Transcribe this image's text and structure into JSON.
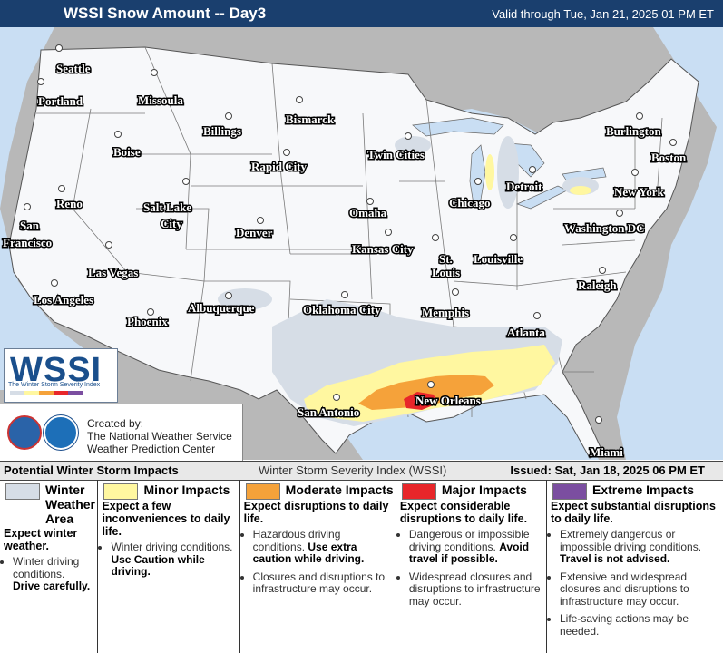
{
  "header": {
    "title": "WSSI Snow Amount -- Day3",
    "valid": "Valid through Tue, Jan 21, 2025 01 PM ET"
  },
  "map": {
    "cities": [
      {
        "name": "Seattle",
        "dot": [
          65,
          53
        ],
        "label": [
          62,
          80
        ]
      },
      {
        "name": "Portland",
        "dot": [
          45,
          90
        ],
        "label": [
          42,
          116
        ]
      },
      {
        "name": "Missoula",
        "dot": [
          170,
          80
        ],
        "label": [
          152,
          115
        ]
      },
      {
        "name": "Billings",
        "dot": [
          252,
          128
        ],
        "label": [
          224,
          149
        ]
      },
      {
        "name": "Bismarck",
        "dot": [
          330,
          110
        ],
        "label": [
          315,
          136
        ]
      },
      {
        "name": "Boise",
        "dot": [
          130,
          148
        ],
        "label": [
          125,
          172
        ]
      },
      {
        "name": "Rapid City",
        "dot": [
          316,
          168
        ],
        "label": [
          277,
          188
        ]
      },
      {
        "name": "Twin Cities",
        "dot": [
          450,
          150
        ],
        "label": [
          405,
          175
        ]
      },
      {
        "name": "Burlington",
        "dot": [
          705,
          128
        ],
        "label": [
          668,
          149
        ]
      },
      {
        "name": "Boston",
        "dot": [
          742,
          157
        ],
        "label": [
          718,
          178
        ]
      },
      {
        "name": "Reno",
        "dot": [
          68,
          208
        ],
        "label": [
          62,
          229
        ]
      },
      {
        "name": "Salt Lake",
        "dot": [
          205,
          200
        ],
        "label": [
          158,
          233
        ]
      },
      {
        "name": "City",
        "dot": null,
        "label": [
          177,
          251
        ]
      },
      {
        "name": "Detroit",
        "dot": [
          587,
          187
        ],
        "label": [
          558,
          210
        ]
      },
      {
        "name": "Chicago",
        "dot": [
          527,
          200
        ],
        "label": [
          495,
          228
        ]
      },
      {
        "name": "Omaha",
        "dot": [
          408,
          222
        ],
        "label": [
          385,
          239
        ]
      },
      {
        "name": "New York",
        "dot": [
          700,
          190
        ],
        "label": [
          677,
          216
        ]
      },
      {
        "name": "San",
        "dot": [
          30,
          228
        ],
        "label": [
          22,
          253
        ]
      },
      {
        "name": "Francisco",
        "dot": null,
        "label": [
          3,
          272
        ]
      },
      {
        "name": "Denver",
        "dot": [
          287,
          243
        ],
        "label": [
          260,
          261
        ]
      },
      {
        "name": "Washington DC",
        "dot": [
          683,
          235
        ],
        "label": [
          622,
          256
        ]
      },
      {
        "name": "Kansas City",
        "dot": [
          428,
          256
        ],
        "label": [
          388,
          279
        ]
      },
      {
        "name": "St.",
        "dot": [
          480,
          262
        ],
        "label": [
          484,
          290
        ]
      },
      {
        "name": "Louisville",
        "dot": [
          566,
          262
        ],
        "label": [
          522,
          290
        ]
      },
      {
        "name": "Louis",
        "dot": null,
        "label": [
          476,
          305
        ]
      },
      {
        "name": "Las Vegas",
        "dot": [
          120,
          270
        ],
        "label": [
          97,
          305
        ]
      },
      {
        "name": "Raleigh",
        "dot": [
          664,
          298
        ],
        "label": [
          637,
          319
        ]
      },
      {
        "name": "Los Angeles",
        "dot": [
          60,
          312
        ],
        "label": [
          37,
          335
        ]
      },
      {
        "name": "Albuquerque",
        "dot": [
          252,
          326
        ],
        "label": [
          207,
          344
        ]
      },
      {
        "name": "Oklahoma City",
        "dot": [
          380,
          325
        ],
        "label": [
          334,
          346
        ]
      },
      {
        "name": "Memphis",
        "dot": [
          502,
          322
        ],
        "label": [
          465,
          349
        ]
      },
      {
        "name": "Phoenix",
        "dot": [
          166,
          344
        ],
        "label": [
          140,
          359
        ]
      },
      {
        "name": "Atlanta",
        "dot": [
          592,
          348
        ],
        "label": [
          559,
          371
        ]
      },
      {
        "name": "San Antonio",
        "dot": [
          371,
          438
        ],
        "label": [
          328,
          459
        ]
      },
      {
        "name": "New Orleans",
        "dot": [
          475,
          424
        ],
        "label": [
          458,
          446
        ]
      },
      {
        "name": "Miami",
        "dot": [
          660,
          463
        ],
        "label": [
          650,
          503
        ]
      }
    ],
    "logo_text": "WSSI",
    "logo_subtitle": "The Winter Storm Severity Index",
    "credits": {
      "line1": "Created by:",
      "line2": "The National Weather Service",
      "line3": "Weather Prediction Center"
    }
  },
  "legend_bar": {
    "left": "Potential Winter Storm Impacts",
    "center": "Winter Storm Severity Index (WSSI)",
    "right": "Issued: Sat, Jan 18, 2025 06 PM ET"
  },
  "colors": {
    "winter_weather_area": "#d6dde6",
    "minor": "#fff7a0",
    "moderate": "#f5a23a",
    "major": "#e8262a",
    "extreme": "#7b4ea0",
    "water": "#c9def3",
    "land": "#f7f8fa",
    "outside": "#b8b8b8",
    "header": "#1a3f6e"
  },
  "legend": [
    {
      "name": "Winter Weather Area",
      "name_lines": [
        "Winter",
        "Weather",
        "Area"
      ],
      "expect": "Expect winter weather.",
      "bullets": [
        [
          "Winter driving conditions. ",
          "Drive carefully."
        ]
      ]
    },
    {
      "name": "Minor Impacts",
      "expect": "Expect a few inconveniences to daily life.",
      "bullets": [
        [
          "Winter driving conditions. ",
          "Use Caution while driving."
        ]
      ]
    },
    {
      "name": "Moderate Impacts",
      "expect": "Expect disruptions to daily life.",
      "bullets": [
        [
          "Hazardous driving conditions. ",
          "Use extra caution while driving."
        ],
        [
          "Closures and disruptions to infrastructure may occur.",
          ""
        ]
      ]
    },
    {
      "name": "Major Impacts",
      "expect": "Expect considerable disruptions to daily life.",
      "bullets": [
        [
          "Dangerous or impossible driving conditions. ",
          "Avoid travel if possible."
        ],
        [
          "Widespread closures and disruptions to infrastructure may occur.",
          ""
        ]
      ]
    },
    {
      "name": "Extreme Impacts",
      "expect": "Expect substantial disruptions to daily life.",
      "bullets": [
        [
          "Extremely dangerous or impossible driving conditions. ",
          "Travel is not advised."
        ],
        [
          "Extensive and widespread closures and disruptions to infrastructure may occur.",
          ""
        ],
        [
          "Life-saving actions may be needed.",
          ""
        ]
      ]
    }
  ]
}
